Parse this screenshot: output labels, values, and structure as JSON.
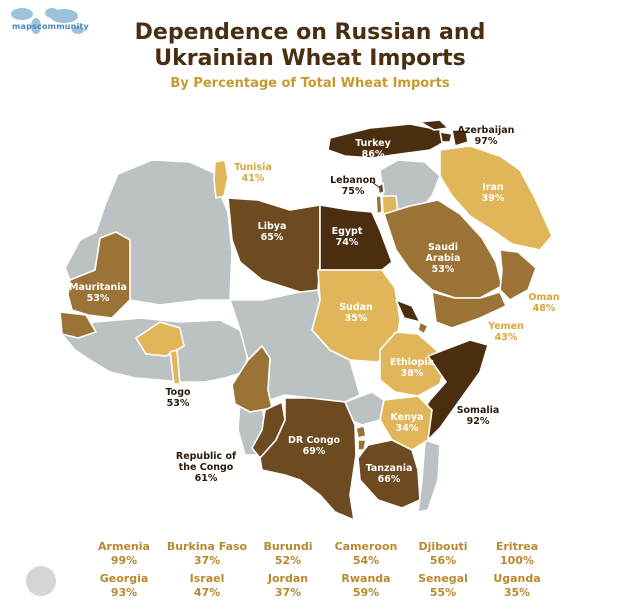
{
  "brand": "mapscommunity",
  "title_line1": "Dependence on Russian and",
  "title_line2": "Ukrainian Wheat Imports",
  "subtitle": "By Percentage of Total Wheat Imports",
  "colors": {
    "dark": "#4b2d0f",
    "medium_dark": "#6e4a20",
    "medium": "#9b7336",
    "light": "#e1b65a",
    "no_data": "#bcc1c4"
  },
  "map_labels": [
    {
      "id": "turkey",
      "name": "Turkey",
      "pct": "86%"
    },
    {
      "id": "azerbaijan",
      "name": "Azerbaijan",
      "pct": "97%"
    },
    {
      "id": "tunisia",
      "name": "Tunisia",
      "pct": "41%"
    },
    {
      "id": "lebanon",
      "name": "Lebanon",
      "pct": "75%"
    },
    {
      "id": "iran",
      "name": "Iran",
      "pct": "39%"
    },
    {
      "id": "libya",
      "name": "Libya",
      "pct": "65%"
    },
    {
      "id": "egypt",
      "name": "Egypt",
      "pct": "74%"
    },
    {
      "id": "saudi",
      "name_lines": [
        "Saudi",
        "Arabia"
      ],
      "pct": "53%"
    },
    {
      "id": "mauritania",
      "name": "Mauritania",
      "pct": "53%"
    },
    {
      "id": "sudan",
      "name": "Sudan",
      "pct": "35%"
    },
    {
      "id": "oman",
      "name": "Oman",
      "pct": "48%"
    },
    {
      "id": "yemen",
      "name": "Yemen",
      "pct": "43%"
    },
    {
      "id": "ethiopia",
      "name": "Ethiopia",
      "pct": "38%"
    },
    {
      "id": "togo",
      "name": "Togo",
      "pct": "53%"
    },
    {
      "id": "somalia",
      "name": "Somalia",
      "pct": "92%"
    },
    {
      "id": "kenya",
      "name": "Kenya",
      "pct": "34%"
    },
    {
      "id": "drcongo",
      "name": "DR Congo",
      "pct": "69%"
    },
    {
      "id": "rcongo",
      "name_lines": [
        "Republic of",
        "the Congo"
      ],
      "pct": "61%"
    },
    {
      "id": "tanzania",
      "name": "Tanzania",
      "pct": "66%"
    }
  ],
  "other_countries": [
    {
      "name": "Armenia",
      "pct": "99%"
    },
    {
      "name": "Burkina Faso",
      "pct": "37%"
    },
    {
      "name": "Burundi",
      "pct": "52%"
    },
    {
      "name": "Cameroon",
      "pct": "54%"
    },
    {
      "name": "Djibouti",
      "pct": "56%"
    },
    {
      "name": "Eritrea",
      "pct": "100%"
    },
    {
      "name": "Georgia",
      "pct": "93%"
    },
    {
      "name": "Israel",
      "pct": "47%"
    },
    {
      "name": "Jordan",
      "pct": "37%"
    },
    {
      "name": "Rwanda",
      "pct": "59%"
    },
    {
      "name": "Senegal",
      "pct": "55%"
    },
    {
      "name": "Uganda",
      "pct": "35%"
    }
  ]
}
